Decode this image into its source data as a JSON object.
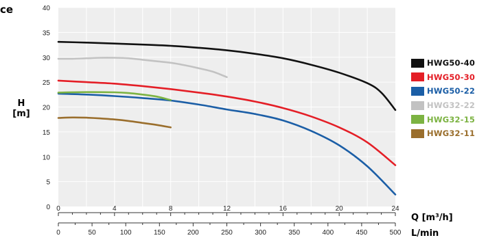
{
  "chart_data": {
    "type": "line",
    "title_fragment": "ce",
    "ylabel": "H",
    "ylabel_unit": "[m]",
    "xlabel_top": "Q [m³/h]",
    "xlabel_bottom": "L/min",
    "ylim": [
      0,
      40
    ],
    "xlim_m3h": [
      0,
      24
    ],
    "y_ticks": [
      "0",
      "5",
      "10",
      "15",
      "20",
      "25",
      "30",
      "35",
      "40"
    ],
    "x_ticks_m3h": [
      "0",
      "4",
      "8",
      "12",
      "16",
      "20",
      "24"
    ],
    "x_ticks_lmin": [
      "0",
      "50",
      "100",
      "150",
      "200",
      "250",
      "300",
      "350",
      "400",
      "450",
      "500"
    ],
    "grid": true,
    "legend_position": "right",
    "series": [
      {
        "name": "HWG50-40",
        "color": "#111111",
        "points": [
          [
            0,
            33.1
          ],
          [
            2,
            32.95
          ],
          [
            4,
            32.75
          ],
          [
            6,
            32.55
          ],
          [
            8,
            32.3
          ],
          [
            10,
            31.9
          ],
          [
            12,
            31.4
          ],
          [
            14,
            30.7
          ],
          [
            16,
            29.8
          ],
          [
            18,
            28.5
          ],
          [
            20,
            26.9
          ],
          [
            22,
            24.8
          ],
          [
            23,
            22.9
          ],
          [
            24,
            19.4
          ]
        ]
      },
      {
        "name": "HWG50-30",
        "color": "#e41e26",
        "points": [
          [
            0,
            25.3
          ],
          [
            2,
            25.0
          ],
          [
            4,
            24.7
          ],
          [
            6,
            24.2
          ],
          [
            8,
            23.6
          ],
          [
            10,
            22.9
          ],
          [
            12,
            22.1
          ],
          [
            14,
            21.1
          ],
          [
            16,
            19.8
          ],
          [
            18,
            18.1
          ],
          [
            20,
            15.9
          ],
          [
            22,
            12.9
          ],
          [
            24,
            8.3
          ]
        ]
      },
      {
        "name": "HWG50-22",
        "color": "#1b5ea6",
        "points": [
          [
            0,
            22.7
          ],
          [
            2,
            22.5
          ],
          [
            4,
            22.2
          ],
          [
            6,
            21.8
          ],
          [
            8,
            21.3
          ],
          [
            10,
            20.5
          ],
          [
            12,
            19.5
          ],
          [
            14,
            18.6
          ],
          [
            16,
            17.3
          ],
          [
            18,
            15.2
          ],
          [
            20,
            12.3
          ],
          [
            22,
            8.1
          ],
          [
            24,
            2.4
          ]
        ]
      },
      {
        "name": "HWG32-22",
        "color": "#c2c2c2",
        "points": [
          [
            0,
            29.7
          ],
          [
            1,
            29.7
          ],
          [
            2,
            29.8
          ],
          [
            3,
            29.9
          ],
          [
            4,
            29.9
          ],
          [
            5,
            29.8
          ],
          [
            6,
            29.5
          ],
          [
            7,
            29.2
          ],
          [
            8,
            28.9
          ],
          [
            9,
            28.4
          ],
          [
            10,
            27.8
          ],
          [
            11,
            27.1
          ],
          [
            12,
            26.0
          ]
        ]
      },
      {
        "name": "HWG32-15",
        "color": "#7cb342",
        "points": [
          [
            0,
            22.9
          ],
          [
            2,
            23.0
          ],
          [
            4,
            22.95
          ],
          [
            5,
            22.8
          ],
          [
            6,
            22.5
          ],
          [
            7,
            22.1
          ],
          [
            8,
            21.4
          ]
        ]
      },
      {
        "name": "HWG32-11",
        "color": "#9a6e2c",
        "points": [
          [
            0,
            17.8
          ],
          [
            1,
            17.9
          ],
          [
            2,
            17.85
          ],
          [
            3,
            17.7
          ],
          [
            4,
            17.5
          ],
          [
            5,
            17.2
          ],
          [
            6,
            16.8
          ],
          [
            7,
            16.4
          ],
          [
            8,
            15.9
          ]
        ]
      }
    ]
  }
}
